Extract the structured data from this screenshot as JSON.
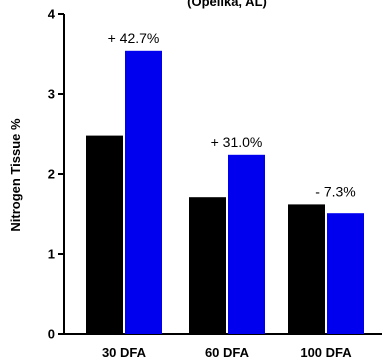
{
  "chart_data": {
    "type": "bar",
    "title": "(Opelika, AL)",
    "ylabel": "Nitrogen Tissue %",
    "xlabel": "",
    "ylim": [
      0,
      4
    ],
    "yticks": [
      "0",
      "1",
      "2",
      "3",
      "4"
    ],
    "categories": [
      "30 DFA",
      "60 DFA",
      "100 DFA"
    ],
    "series": [
      {
        "color": "#000000",
        "values": [
          2.48,
          1.71,
          1.62
        ]
      },
      {
        "color": "#0000ee",
        "values": [
          3.54,
          2.24,
          1.51
        ]
      }
    ],
    "annotations": [
      "+ 42.7%",
      "+ 31.0%",
      "- 7.3%"
    ],
    "grid": false,
    "legend": "none"
  }
}
